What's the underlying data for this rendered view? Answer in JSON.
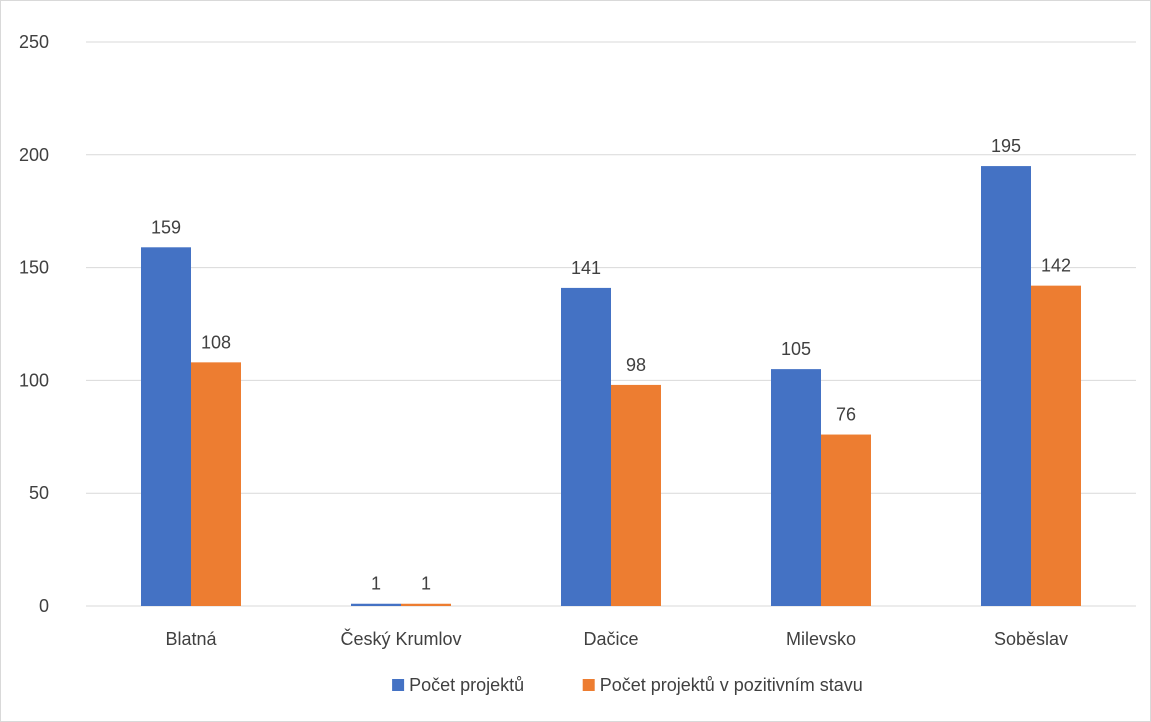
{
  "chart_data": {
    "type": "bar",
    "title": "",
    "xlabel": "",
    "ylabel": "",
    "categories": [
      "Blatná",
      "Český Krumlov",
      "Dačice",
      "Milevsko",
      "Soběslav"
    ],
    "series": [
      {
        "name": "Počet projektů",
        "values": [
          159,
          1,
          141,
          105,
          195
        ],
        "color": "#4472C4"
      },
      {
        "name": "Počet projektů v pozitivním stavu",
        "values": [
          108,
          1,
          98,
          76,
          142
        ],
        "color": "#ED7D31"
      }
    ],
    "ylim": [
      0,
      250
    ],
    "yticks": [
      0,
      50,
      100,
      150,
      200,
      250
    ],
    "grid": true,
    "gridline_color": "#d9d9d9",
    "data_labels": true,
    "legend_position": "bottom"
  }
}
